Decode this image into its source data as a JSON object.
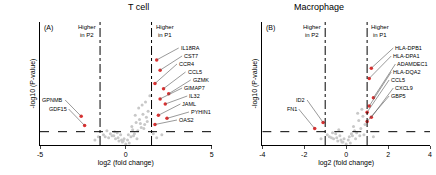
{
  "chart_data": [
    {
      "type": "scatter",
      "title": "T cell",
      "panel": "(A)",
      "annotations": [
        "Higher in P2",
        "Higher in P1"
      ],
      "x_label": "log2 (fold change)",
      "y_label": "-log10 (P-value)",
      "xlim": [
        -5,
        5
      ],
      "xticks": [
        -5,
        0,
        5
      ],
      "ylim": [
        0,
        12
      ],
      "tick_labels": "x",
      "vlines": [
        -1.5,
        1.5
      ],
      "hline": 1.3,
      "points": {
        "color": "#c8c8c8",
        "x": [
          -0.2,
          0.1,
          0.3,
          -0.4,
          0.5,
          -0.6,
          0.7,
          -0.8,
          0.9,
          -1.0,
          1.1,
          -1.2,
          0.2,
          -0.1,
          0.4,
          -0.3,
          0.6,
          -0.5,
          0.8,
          -0.7,
          1.0,
          -0.9,
          1.2,
          -1.1,
          1.3,
          0.0,
          0.15,
          -0.25,
          0.35,
          -0.45,
          0.55,
          -0.65,
          0.75,
          0.95,
          1.15,
          -1.3,
          -1.6,
          1.6,
          1.4,
          0.85,
          0.45,
          -0.15,
          1.05,
          1.25,
          0.65,
          -1.8,
          2.1,
          1.8
        ],
        "y": [
          0.3,
          0.5,
          0.8,
          0.4,
          1.1,
          0.6,
          1.4,
          0.9,
          1.7,
          0.7,
          2.0,
          0.8,
          0.2,
          0.6,
          1.5,
          1.0,
          2.2,
          1.2,
          2.5,
          0.9,
          3.0,
          1.1,
          2.7,
          1.4,
          3.3,
          0.1,
          1.0,
          0.5,
          1.8,
          0.7,
          2.9,
          1.3,
          3.6,
          3.9,
          4.2,
          1.0,
          0.8,
          1.1,
          4.8,
          2.1,
          0.9,
          0.4,
          1.6,
          2.3,
          0.6,
          0.5,
          1.0,
          0.7
        ]
      },
      "highlighted": {
        "color": "#e03030",
        "labels": [
          "IL18RA",
          "CST7",
          "CCR4",
          "CCL5",
          "GZMK",
          "GIMAP7",
          "IL32",
          "JAML",
          "PYHIN1",
          "OAS2",
          "GPNMB",
          "GDF15"
        ],
        "x": [
          1.8,
          2.0,
          1.7,
          2.2,
          2.5,
          2.0,
          2.3,
          1.9,
          2.4,
          1.7,
          -2.6,
          -2.4
        ],
        "y": [
          8.3,
          7.3,
          6.0,
          5.5,
          5.0,
          4.5,
          4.0,
          2.9,
          2.6,
          2.0,
          2.8,
          1.9
        ]
      }
    },
    {
      "type": "scatter",
      "title": "Macrophage",
      "panel": "(B)",
      "annotations": [
        "Higher in P2",
        "Higher in P1"
      ],
      "x_label": "log2 (fold change)",
      "y_label": "-log10 (P-value)",
      "xlim": [
        -4,
        4
      ],
      "xticks": [
        -4,
        -2,
        0,
        2,
        4
      ],
      "ylim": [
        0,
        12
      ],
      "tick_labels": "x",
      "vlines": [
        -1,
        1
      ],
      "hline": 1.3,
      "points": {
        "color": "#c8c8c8",
        "x": [
          -0.2,
          0.1,
          0.3,
          -0.4,
          0.5,
          -0.6,
          0.7,
          -0.8,
          0.9,
          -0.9,
          0.2,
          -0.1,
          0.4,
          -0.3,
          0.6,
          -0.5,
          0.8,
          -0.7,
          0.0,
          0.15,
          -0.25,
          0.35,
          -0.45,
          0.55,
          -0.65,
          0.75,
          0.85,
          0.45,
          -0.15,
          0.65,
          -1.2,
          1.3,
          -0.35,
          0.25
        ],
        "y": [
          0.3,
          0.5,
          0.9,
          0.4,
          1.2,
          0.6,
          1.6,
          0.8,
          2.0,
          1.0,
          0.2,
          0.6,
          1.4,
          0.9,
          2.4,
          1.1,
          2.8,
          0.7,
          0.1,
          0.8,
          0.5,
          1.8,
          0.7,
          3.1,
          1.2,
          3.5,
          1.0,
          0.6,
          0.3,
          0.9,
          0.6,
          0.8,
          1.5,
          1.1
        ]
      },
      "highlighted": {
        "color": "#e03030",
        "labels": [
          "HLA-DPB1",
          "HLA-DPA1",
          "ADAMDEC1",
          "HLA-DQA2",
          "CCL5",
          "CXCL9",
          "GBP5",
          "ID2",
          "FN1"
        ],
        "x": [
          1.2,
          1.1,
          1.3,
          1.1,
          1.0,
          1.2,
          1.0,
          -1.1,
          -1.5
        ],
        "y": [
          7.5,
          6.5,
          4.6,
          3.8,
          3.2,
          2.7,
          2.3,
          2.2,
          1.6
        ]
      }
    }
  ]
}
